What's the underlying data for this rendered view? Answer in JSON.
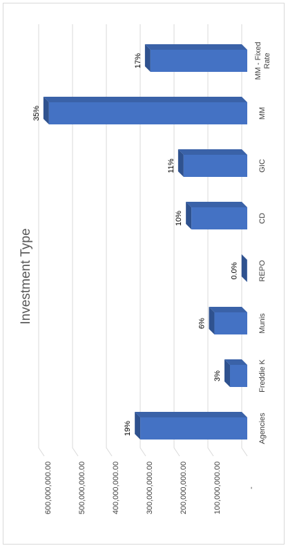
{
  "chart_data": {
    "type": "bar",
    "orientation": "horizontal",
    "title": "Investment Type",
    "categories": [
      "Agencies",
      "Freddie K",
      "Munis",
      "REPO",
      "CD",
      "GIC",
      "MM",
      "MM - Fixed Rate"
    ],
    "values": [
      316000000,
      51000000,
      97000000,
      500000,
      165000000,
      188000000,
      586000000,
      286000000
    ],
    "value_labels": [
      "19%",
      "3%",
      "6%",
      "0.0%",
      "10%",
      "11%",
      "35%",
      "17%"
    ],
    "color": "#4472c4",
    "xlim": [
      0,
      600000000
    ],
    "xticks": [
      {
        "value": 0,
        "label": "-"
      },
      {
        "value": 100000000,
        "label": "100,000,000.00"
      },
      {
        "value": 200000000,
        "label": "200,000,000.00"
      },
      {
        "value": 300000000,
        "label": "300,000,000.00"
      },
      {
        "value": 400000000,
        "label": "400,000,000.00"
      },
      {
        "value": 500000000,
        "label": "500,000,000.00"
      },
      {
        "value": 600000000,
        "label": "600,000,000.00"
      }
    ],
    "grid": true
  }
}
